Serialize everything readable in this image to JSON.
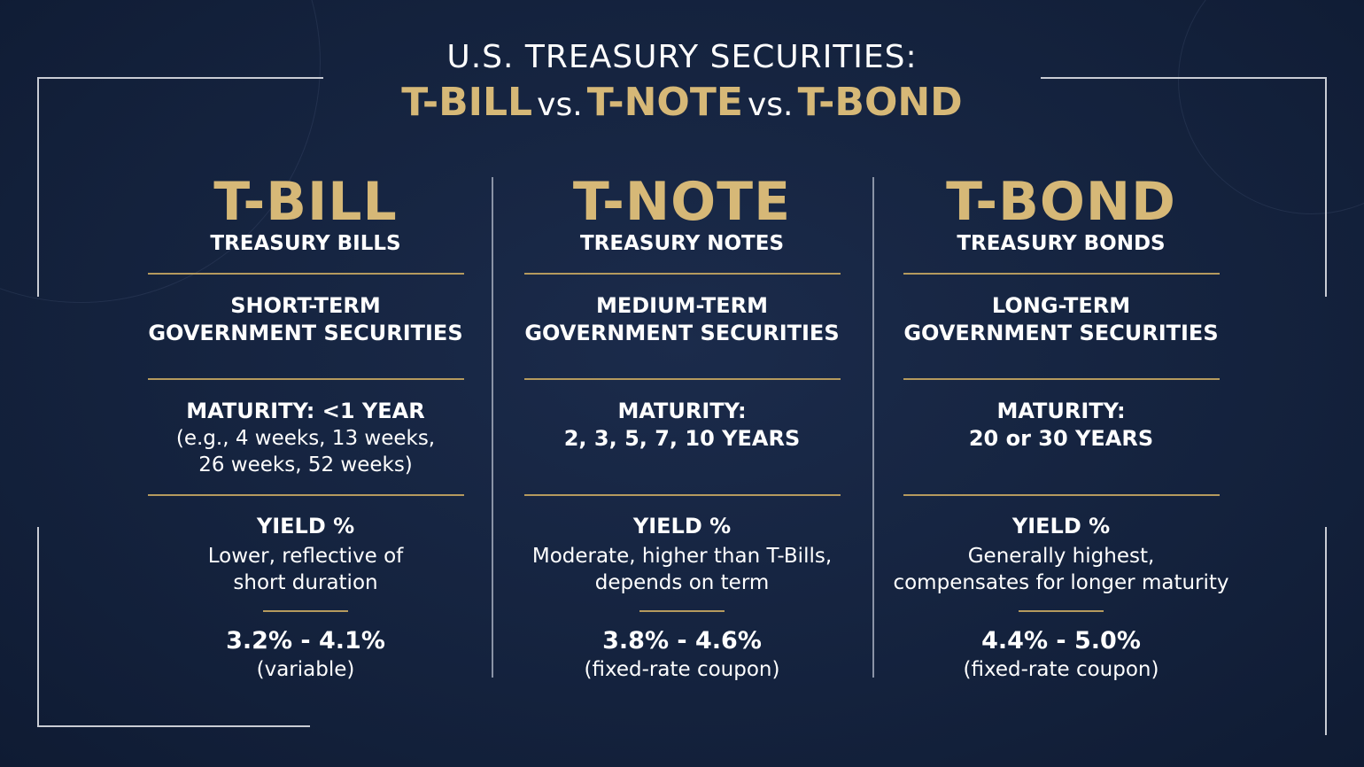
{
  "header": {
    "kicker": "U.S. TREASURY SECURITIES:",
    "title": [
      "T-BILL",
      "vs.",
      "T-NOTE",
      "vs.",
      "T-BOND"
    ]
  },
  "columns": [
    {
      "name": "T-BILL",
      "full_name": "TREASURY BILLS",
      "term": [
        "SHORT-TERM",
        "GOVERNMENT SECURITIES"
      ],
      "maturity_lines": [
        "MATURITY: <1 YEAR"
      ],
      "maturity_detail_lines": [
        "(e.g., 4 weeks, 13 weeks,",
        "26 weeks, 52 weeks)"
      ],
      "yield_label": "YIELD %",
      "yield_description": [
        "Lower, reflective of",
        "short duration"
      ],
      "yield_range": "3.2% - 4.1%",
      "yield_note": "(variable)"
    },
    {
      "name": "T-NOTE",
      "full_name": "TREASURY NOTES",
      "term": [
        "MEDIUM-TERM",
        "GOVERNMENT SECURITIES"
      ],
      "maturity_lines": [
        "MATURITY:",
        "2, 3, 5, 7, 10 YEARS"
      ],
      "maturity_detail_lines": [],
      "yield_label": "YIELD %",
      "yield_description": [
        "Moderate, higher than T-Bills,",
        "depends on term"
      ],
      "yield_range": "3.8% - 4.6%",
      "yield_note": "(fixed-rate coupon)"
    },
    {
      "name": "T-BOND",
      "full_name": "TREASURY BONDS",
      "term": [
        "LONG-TERM",
        "GOVERNMENT SECURITIES"
      ],
      "maturity_lines": [
        "MATURITY:",
        "20 or 30 YEARS"
      ],
      "maturity_detail_lines": [],
      "yield_label": "YIELD %",
      "yield_description": [
        "Generally highest,",
        "compensates for longer maturity"
      ],
      "yield_range": "4.4% - 5.0%",
      "yield_note": "(fixed-rate coupon)"
    }
  ]
}
